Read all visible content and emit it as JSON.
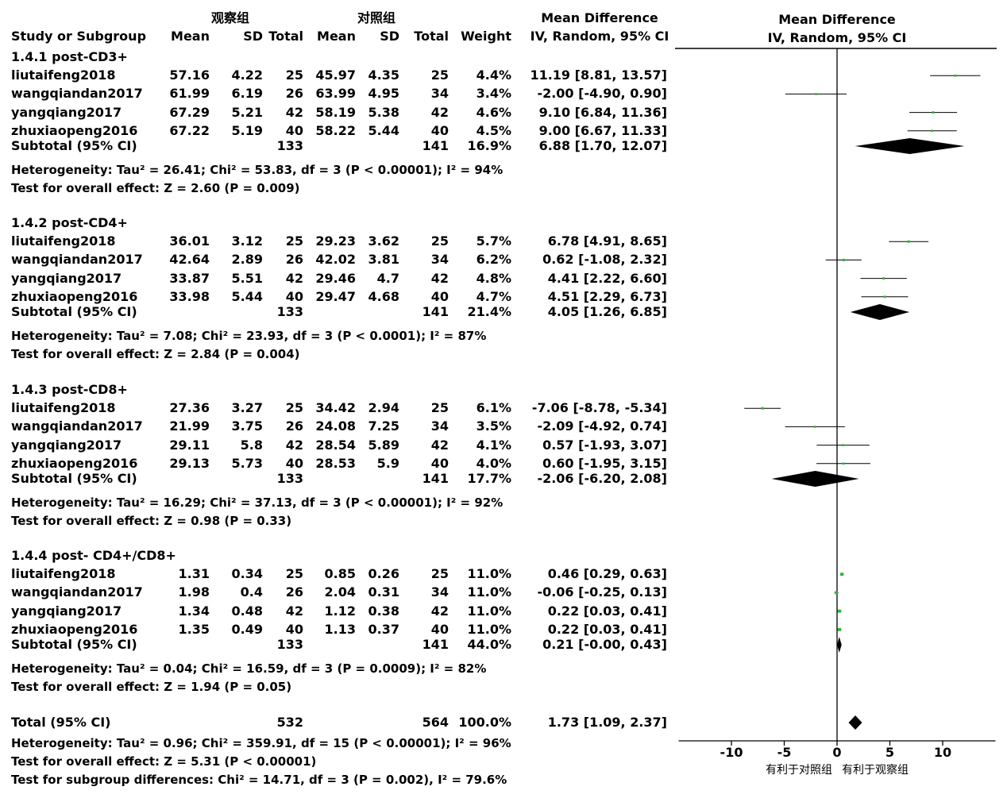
{
  "header": {
    "exp_group": "观察组",
    "ctrl_group": "对照组",
    "md_label": "Mean Difference",
    "md_method": "IV, Random, 95% CI",
    "plot_md_label": "Mean Difference",
    "plot_md_method": "IV, Random, 95% CI",
    "col_study": "Study or Subgroup",
    "col_mean1": "Mean",
    "col_sd1": "SD",
    "col_total1": "Total",
    "col_mean2": "Mean",
    "col_sd2": "SD",
    "col_total2": "Total",
    "col_weight": "Weight"
  },
  "subgroups": [
    {
      "title": "1.4.1 post-CD3+",
      "studies": [
        {
          "name": "liutaifeng2018",
          "mean1": "57.16",
          "sd1": "4.22",
          "n1": "25",
          "mean2": "45.97",
          "sd2": "4.35",
          "n2": "25",
          "weight": "4.4%",
          "ci": "11.19 [8.81, 13.57]"
        },
        {
          "name": "wangqiandan2017",
          "mean1": "61.99",
          "sd1": "6.19",
          "n1": "26",
          "mean2": "63.99",
          "sd2": "4.95",
          "n2": "34",
          "weight": "3.4%",
          "ci": "-2.00 [-4.90, 0.90]"
        },
        {
          "name": "yangqiang2017",
          "mean1": "67.29",
          "sd1": "5.21",
          "n1": "42",
          "mean2": "58.19",
          "sd2": "5.38",
          "n2": "42",
          "weight": "4.6%",
          "ci": "9.10 [6.84, 11.36]"
        },
        {
          "name": "zhuxiaopeng2016",
          "mean1": "67.22",
          "sd1": "5.19",
          "n1": "40",
          "mean2": "58.22",
          "sd2": "5.44",
          "n2": "40",
          "weight": "4.5%",
          "ci": "9.00 [6.67, 11.33]"
        }
      ],
      "subtotal": {
        "label": "Subtotal (95% CI)",
        "n1": "133",
        "n2": "141",
        "weight": "16.9%",
        "ci": "6.88 [1.70, 12.07]"
      },
      "heterogeneity": "Heterogeneity: Tau² = 26.41; Chi² = 53.83, df = 3 (P < 0.00001); I² = 94%",
      "overall": "Test for overall effect: Z = 2.60 (P = 0.009)"
    },
    {
      "title": "1.4.2 post-CD4+",
      "studies": [
        {
          "name": "liutaifeng2018",
          "mean1": "36.01",
          "sd1": "3.12",
          "n1": "25",
          "mean2": "29.23",
          "sd2": "3.62",
          "n2": "25",
          "weight": "5.7%",
          "ci": "6.78 [4.91, 8.65]"
        },
        {
          "name": "wangqiandan2017",
          "mean1": "42.64",
          "sd1": "2.89",
          "n1": "26",
          "mean2": "42.02",
          "sd2": "3.81",
          "n2": "34",
          "weight": "6.2%",
          "ci": "0.62 [-1.08, 2.32]"
        },
        {
          "name": "yangqiang2017",
          "mean1": "33.87",
          "sd1": "5.51",
          "n1": "42",
          "mean2": "29.46",
          "sd2": "4.7",
          "n2": "42",
          "weight": "4.8%",
          "ci": "4.41 [2.22, 6.60]"
        },
        {
          "name": "zhuxiaopeng2016",
          "mean1": "33.98",
          "sd1": "5.44",
          "n1": "40",
          "mean2": "29.47",
          "sd2": "4.68",
          "n2": "40",
          "weight": "4.7%",
          "ci": "4.51 [2.29, 6.73]"
        }
      ],
      "subtotal": {
        "label": "Subtotal (95% CI)",
        "n1": "133",
        "n2": "141",
        "weight": "21.4%",
        "ci": "4.05 [1.26, 6.85]"
      },
      "heterogeneity": "Heterogeneity: Tau² = 7.08; Chi² = 23.93, df = 3 (P < 0.0001); I² = 87%",
      "overall": "Test for overall effect: Z = 2.84 (P = 0.004)"
    },
    {
      "title": "1.4.3 post-CD8+",
      "studies": [
        {
          "name": "liutaifeng2018",
          "mean1": "27.36",
          "sd1": "3.27",
          "n1": "25",
          "mean2": "34.42",
          "sd2": "2.94",
          "n2": "25",
          "weight": "6.1%",
          "ci": "-7.06 [-8.78, -5.34]"
        },
        {
          "name": "wangqiandan2017",
          "mean1": "21.99",
          "sd1": "3.75",
          "n1": "26",
          "mean2": "24.08",
          "sd2": "7.25",
          "n2": "34",
          "weight": "3.5%",
          "ci": "-2.09 [-4.92, 0.74]"
        },
        {
          "name": "yangqiang2017",
          "mean1": "29.11",
          "sd1": "5.8",
          "n1": "42",
          "mean2": "28.54",
          "sd2": "5.89",
          "n2": "42",
          "weight": "4.1%",
          "ci": "0.57 [-1.93, 3.07]"
        },
        {
          "name": "zhuxiaopeng2016",
          "mean1": "29.13",
          "sd1": "5.73",
          "n1": "40",
          "mean2": "28.53",
          "sd2": "5.9",
          "n2": "40",
          "weight": "4.0%",
          "ci": "0.60 [-1.95, 3.15]"
        }
      ],
      "subtotal": {
        "label": "Subtotal (95% CI)",
        "n1": "133",
        "n2": "141",
        "weight": "17.7%",
        "ci": "-2.06 [-6.20, 2.08]"
      },
      "heterogeneity": "Heterogeneity: Tau² = 16.29; Chi² = 37.13, df = 3 (P < 0.00001); I² = 92%",
      "overall": "Test for overall effect: Z = 0.98 (P = 0.33)"
    },
    {
      "title": "1.4.4 post- CD4+/CD8+",
      "studies": [
        {
          "name": "liutaifeng2018",
          "mean1": "1.31",
          "sd1": "0.34",
          "n1": "25",
          "mean2": "0.85",
          "sd2": "0.26",
          "n2": "25",
          "weight": "11.0%",
          "ci": "0.46 [0.29, 0.63]"
        },
        {
          "name": "wangqiandan2017",
          "mean1": "1.98",
          "sd1": "0.4",
          "n1": "26",
          "mean2": "2.04",
          "sd2": "0.31",
          "n2": "34",
          "weight": "11.0%",
          "ci": "-0.06 [-0.25, 0.13]"
        },
        {
          "name": "yangqiang2017",
          "mean1": "1.34",
          "sd1": "0.48",
          "n1": "42",
          "mean2": "1.12",
          "sd2": "0.38",
          "n2": "42",
          "weight": "11.0%",
          "ci": "0.22 [0.03, 0.41]"
        },
        {
          "name": "zhuxiaopeng2016",
          "mean1": "1.35",
          "sd1": "0.49",
          "n1": "40",
          "mean2": "1.13",
          "sd2": "0.37",
          "n2": "40",
          "weight": "11.0%",
          "ci": "0.22 [0.03, 0.41]"
        }
      ],
      "subtotal": {
        "label": "Subtotal (95% CI)",
        "n1": "133",
        "n2": "141",
        "weight": "44.0%",
        "ci": "0.21 [-0.00, 0.43]"
      },
      "heterogeneity": "Heterogeneity: Tau² = 0.04; Chi² = 16.59, df = 3 (P = 0.0009); I² = 82%",
      "overall": "Test for overall effect: Z = 1.94 (P = 0.05)"
    }
  ],
  "total": {
    "label": "Total (95% CI)",
    "n1": "532",
    "n2": "564",
    "weight": "100.0%",
    "ci": "1.73 [1.09, 2.37]",
    "heterogeneity": "Heterogeneity: Tau² = 0.96; Chi² = 359.91, df = 15 (P < 0.00001); I² = 96%",
    "overall": "Test for overall effect: Z = 5.31 (P < 0.00001)",
    "subgroup_diff": "Test for subgroup differences: Chi² = 14.71, df = 3 (P = 0.002), I² = 79.6%"
  },
  "chart_data": {
    "type": "forest",
    "xlim": [
      -15,
      15
    ],
    "xticks": [
      "-10",
      "-5",
      "0",
      "5",
      "10"
    ],
    "xtick_values": [
      -10,
      -5,
      0,
      5,
      10
    ],
    "favours_left": "有利于对照组",
    "favours_right": "有利于观察组",
    "point_color": "#2db83d",
    "diamond_color": "#000000",
    "studies": [
      {
        "group": 0,
        "md": 11.19,
        "lo": 8.81,
        "hi": 13.57,
        "weight": 4.4
      },
      {
        "group": 0,
        "md": -2.0,
        "lo": -4.9,
        "hi": 0.9,
        "weight": 3.4
      },
      {
        "group": 0,
        "md": 9.1,
        "lo": 6.84,
        "hi": 11.36,
        "weight": 4.6
      },
      {
        "group": 0,
        "md": 9.0,
        "lo": 6.67,
        "hi": 11.33,
        "weight": 4.5
      },
      {
        "group": 1,
        "md": 6.78,
        "lo": 4.91,
        "hi": 8.65,
        "weight": 5.7
      },
      {
        "group": 1,
        "md": 0.62,
        "lo": -1.08,
        "hi": 2.32,
        "weight": 6.2
      },
      {
        "group": 1,
        "md": 4.41,
        "lo": 2.22,
        "hi": 6.6,
        "weight": 4.8
      },
      {
        "group": 1,
        "md": 4.51,
        "lo": 2.29,
        "hi": 6.73,
        "weight": 4.7
      },
      {
        "group": 2,
        "md": -7.06,
        "lo": -8.78,
        "hi": -5.34,
        "weight": 6.1
      },
      {
        "group": 2,
        "md": -2.09,
        "lo": -4.92,
        "hi": 0.74,
        "weight": 3.5
      },
      {
        "group": 2,
        "md": 0.57,
        "lo": -1.93,
        "hi": 3.07,
        "weight": 4.1
      },
      {
        "group": 2,
        "md": 0.6,
        "lo": -1.95,
        "hi": 3.15,
        "weight": 4.0
      },
      {
        "group": 3,
        "md": 0.46,
        "lo": 0.29,
        "hi": 0.63,
        "weight": 11.0
      },
      {
        "group": 3,
        "md": -0.06,
        "lo": -0.25,
        "hi": 0.13,
        "weight": 11.0
      },
      {
        "group": 3,
        "md": 0.22,
        "lo": 0.03,
        "hi": 0.41,
        "weight": 11.0
      },
      {
        "group": 3,
        "md": 0.22,
        "lo": 0.03,
        "hi": 0.41,
        "weight": 11.0
      }
    ],
    "subtotals": [
      {
        "group": 0,
        "md": 6.88,
        "lo": 1.7,
        "hi": 12.07
      },
      {
        "group": 1,
        "md": 4.05,
        "lo": 1.26,
        "hi": 6.85
      },
      {
        "group": 2,
        "md": -2.06,
        "lo": -6.2,
        "hi": 2.08
      },
      {
        "group": 3,
        "md": 0.21,
        "lo": -0.0,
        "hi": 0.43
      }
    ],
    "total": {
      "md": 1.73,
      "lo": 1.09,
      "hi": 2.37
    }
  }
}
